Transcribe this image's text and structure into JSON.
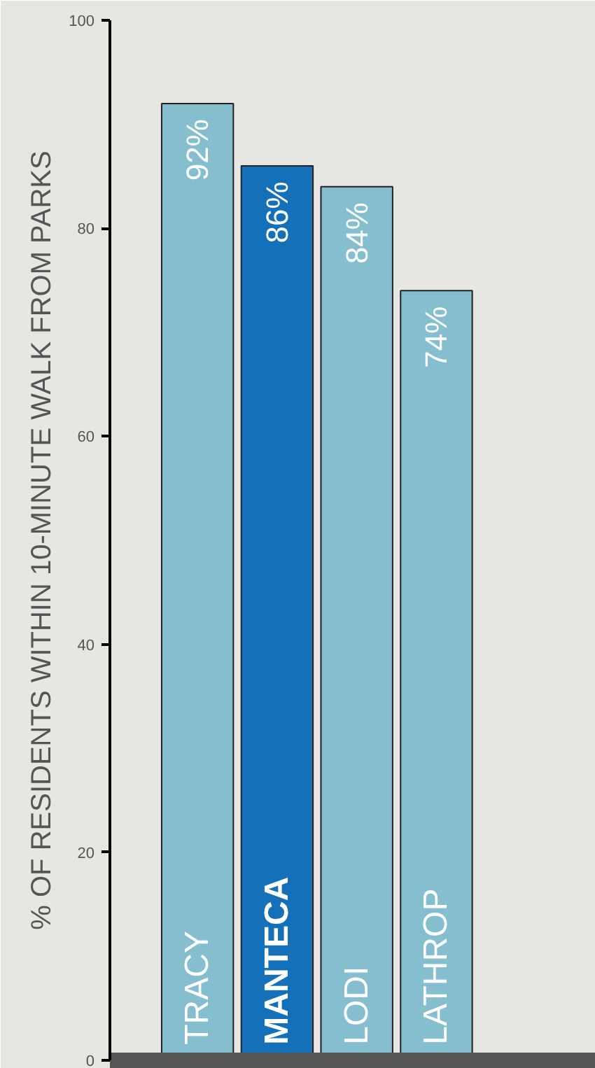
{
  "chart_data": {
    "type": "bar",
    "ylabel": "% OF RESIDENTS WITHIN 10-MINUTE WALK FROM PARKS",
    "categories": [
      "TRACY",
      "MANTECA",
      "LODI",
      "LATHROP"
    ],
    "values": [
      92,
      86,
      84,
      74
    ],
    "colors": [
      "#85bfcf",
      "#1470b8",
      "#85bfcf",
      "#85bfcf"
    ],
    "value_labels": [
      "92%",
      "86%",
      "84%",
      "74%"
    ],
    "ylim": [
      0,
      100
    ],
    "yticks": [
      0,
      20,
      40,
      60,
      80,
      100
    ]
  }
}
